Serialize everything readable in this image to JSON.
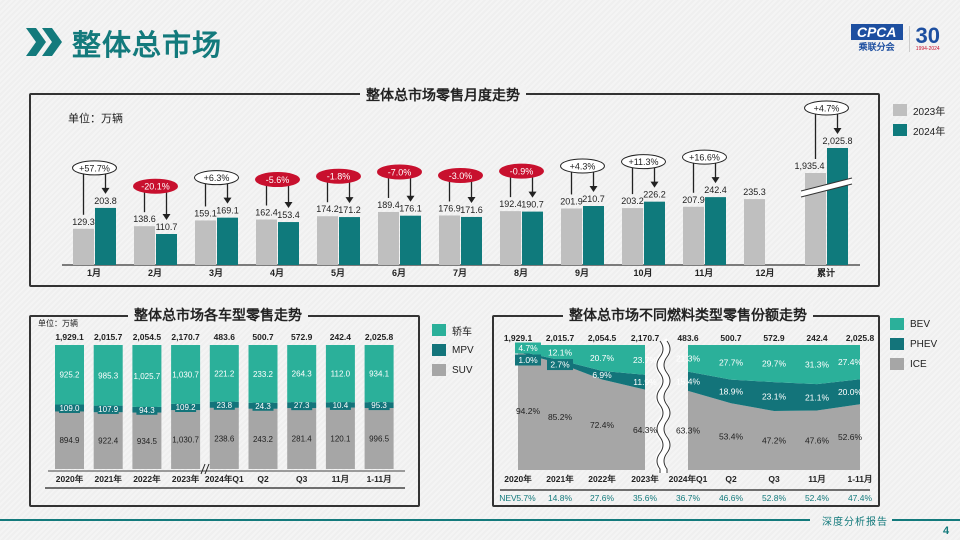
{
  "header": {
    "title": "整体总市场",
    "logo": {
      "brand": "CPCA",
      "brand_cn": "乘联分会",
      "anniversary": "30",
      "years": "1994-2024"
    }
  },
  "monthly_panel": {
    "title": "整体总市场零售月度走势",
    "unit": "单位：万辆",
    "legend": [
      "2023年",
      "2024年"
    ]
  },
  "type_panel": {
    "title": "整体总市场各车型零售走势",
    "unit": "单位：万辆",
    "legend": [
      "轿车",
      "MPV",
      "SUV"
    ]
  },
  "fuel_panel": {
    "title": "整体总市场不同燃料类型零售份额走势",
    "legend": [
      "BEV",
      "PHEV",
      "ICE"
    ]
  },
  "colors": {
    "accent": "#137a7c",
    "y2023": "#bfbfbf",
    "y2024": "#0f7a7c",
    "negative": "#c8102e",
    "sedan": "#2bb09a",
    "mpv": "#13747a",
    "suv": "#a6a6a6",
    "bev": "#2bb09a",
    "phev": "#13747a",
    "ice": "#a6a6a6"
  },
  "chart_data": [
    {
      "type": "bar",
      "title": "整体总市场零售月度走势",
      "unit": "单位：万辆",
      "categories": [
        "1月",
        "2月",
        "3月",
        "4月",
        "5月",
        "6月",
        "7月",
        "8月",
        "9月",
        "10月",
        "11月",
        "12月",
        "累计"
      ],
      "series": [
        {
          "name": "2023年",
          "values": [
            129.3,
            138.6,
            159.1,
            162.4,
            174.2,
            189.4,
            176.9,
            192.4,
            201.9,
            203.2,
            207.9,
            235.3,
            1935.4
          ],
          "labels": [
            "129.3",
            "138.6",
            "159.1",
            "162.4",
            "174.2",
            "189.4",
            "176.9",
            "192.4",
            "201.9",
            "203.2",
            "207.9",
            "235.3",
            "1,935.4"
          ]
        },
        {
          "name": "2024年",
          "values": [
            203.8,
            110.7,
            169.1,
            153.4,
            171.2,
            176.1,
            171.6,
            190.7,
            210.7,
            226.2,
            242.4,
            null,
            2025.8
          ],
          "labels": [
            "203.8",
            "110.7",
            "169.1",
            "153.4",
            "171.2",
            "176.1",
            "171.6",
            "190.7",
            "210.7",
            "226.2",
            "242.4",
            "",
            "2,025.8"
          ]
        }
      ],
      "yoy": [
        "+57.7%",
        "-20.1%",
        "+6.3%",
        "-5.6%",
        "-1.8%",
        "-7.0%",
        "-3.0%",
        "-0.9%",
        "+4.3%",
        "+11.3%",
        "+16.6%",
        "",
        "+4.7%"
      ],
      "axis_break": "累计",
      "legend_position": "right"
    },
    {
      "type": "bar",
      "stacked": "100%",
      "title": "整体总市场各车型零售走势",
      "unit": "单位：万辆",
      "categories": [
        "2020年",
        "2021年",
        "2022年",
        "2023年",
        "2024年Q1",
        "Q2",
        "Q3",
        "11月",
        "1-11月"
      ],
      "totals": [
        "1,929.1",
        "2,015.7",
        "2,054.5",
        "2,170.7",
        "483.6",
        "500.7",
        "572.9",
        "242.4",
        "2,025.8"
      ],
      "series": [
        {
          "name": "SUV",
          "values": [
            894.9,
            922.4,
            934.5,
            1030.7,
            238.6,
            243.2,
            281.4,
            120.1,
            996.5
          ],
          "labels": [
            "894.9",
            "922.4",
            "934.5",
            "1,030.7",
            "238.6",
            "243.2",
            "281.4",
            "120.1",
            "996.5"
          ]
        },
        {
          "name": "MPV",
          "values": [
            109.0,
            107.9,
            94.3,
            109.2,
            23.8,
            24.3,
            27.3,
            10.4,
            95.3
          ],
          "labels": [
            "109.0",
            "107.9",
            "94.3",
            "109.2",
            "23.8",
            "24.3",
            "27.3",
            "10.4",
            "95.3"
          ]
        },
        {
          "name": "轿车",
          "values": [
            925.2,
            985.3,
            1025.7,
            1030.7,
            221.2,
            233.2,
            264.3,
            112.0,
            934.1
          ],
          "labels": [
            "925.2",
            "985.3",
            "1,025.7",
            "1,030.7",
            "221.2",
            "233.2",
            "264.3",
            "112.0",
            "934.1"
          ]
        }
      ],
      "axis_break": "2023年 / 2024年Q1",
      "legend_position": "right"
    },
    {
      "type": "area",
      "stacked": "100%",
      "title": "整体总市场不同燃料类型零售份额走势",
      "categories": [
        "2020年",
        "2021年",
        "2022年",
        "2023年",
        "2024年Q1",
        "Q2",
        "Q3",
        "11月",
        "1-11月"
      ],
      "totals": [
        "1,929.1",
        "2,015.7",
        "2,054.5",
        "2,170.7",
        "483.6",
        "500.7",
        "572.9",
        "242.4",
        "2,025.8"
      ],
      "series": [
        {
          "name": "ICE",
          "values": [
            94.2,
            85.2,
            72.4,
            64.3,
            63.3,
            53.4,
            47.2,
            47.6,
            52.6
          ]
        },
        {
          "name": "PHEV",
          "values": [
            1.0,
            2.7,
            6.9,
            11.9,
            15.4,
            18.9,
            23.1,
            21.1,
            20.0
          ]
        },
        {
          "name": "BEV",
          "values": [
            4.7,
            12.1,
            20.7,
            23.7,
            21.3,
            27.7,
            29.7,
            31.3,
            27.4
          ]
        }
      ],
      "nev_label": "NEV",
      "nev": [
        "5.7%",
        "14.8%",
        "27.6%",
        "35.6%",
        "36.7%",
        "46.6%",
        "52.8%",
        "52.4%",
        "47.4%"
      ],
      "axis_break": "2023年 / 2024年Q1",
      "legend_position": "right"
    }
  ],
  "footer": {
    "text": "深度分析报告",
    "page": "4"
  }
}
